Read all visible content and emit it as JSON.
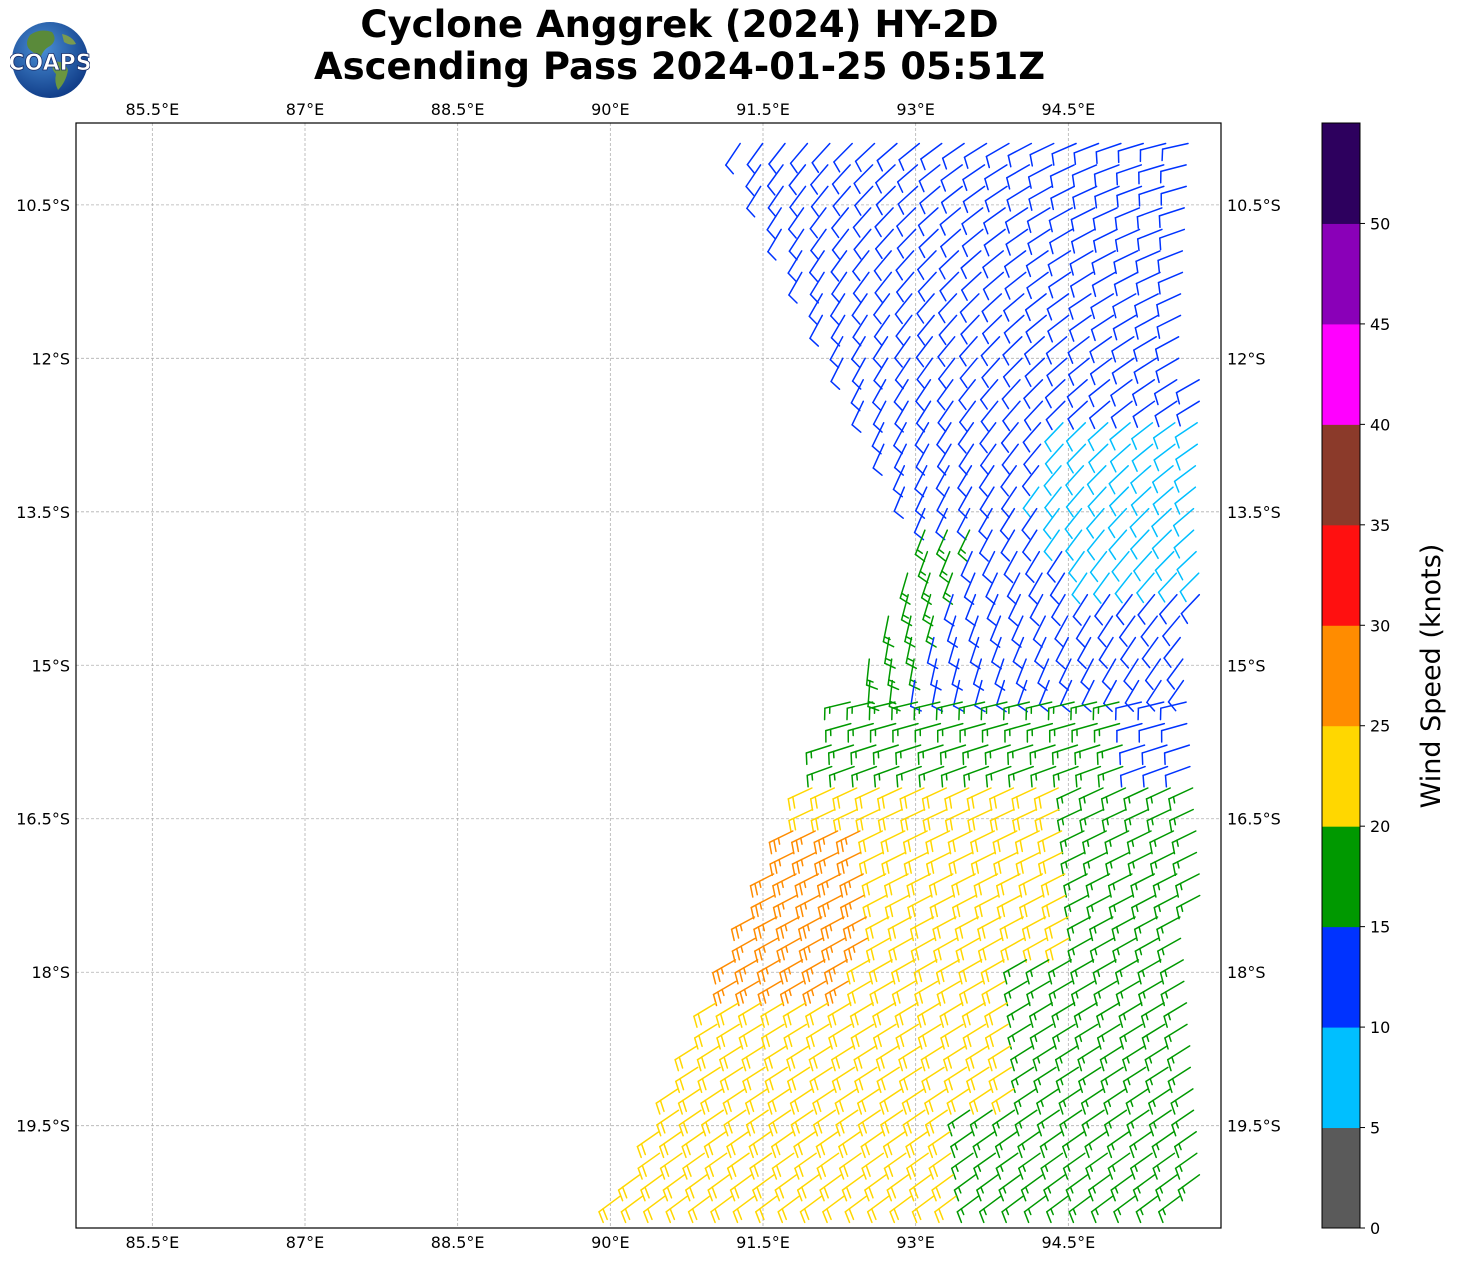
{
  "title": {
    "line1": "Cyclone Anggrek (2024) HY-2D",
    "line2": "Ascending Pass 2024-01-25 05:51Z"
  },
  "logo": {
    "text": "COAPS",
    "icon": "globe-logo"
  },
  "map": {
    "lon_range": [
      84.75,
      96.0
    ],
    "lat_range": [
      -9.7,
      -20.5
    ],
    "lon_ticks": [
      "85.5°E",
      "87°E",
      "88.5°E",
      "90°E",
      "91.5°E",
      "93°E",
      "94.5°E"
    ],
    "lat_ticks": [
      "10.5°S",
      "12°S",
      "13.5°S",
      "15°S",
      "16.5°S",
      "18°S",
      "19.5°S"
    ],
    "grid": true
  },
  "colorbar": {
    "label": "Wind Speed (knots)",
    "ticks": [
      "0",
      "5",
      "10",
      "15",
      "20",
      "25",
      "30",
      "35",
      "40",
      "45",
      "50"
    ],
    "colors": [
      "#5a5a5a",
      "#00bfff",
      "#0033ff",
      "#009900",
      "#ffd700",
      "#ff8c00",
      "#ff1010",
      "#8b3a2a",
      "#ff00ff",
      "#8a00b8",
      "#2d005e"
    ]
  }
}
